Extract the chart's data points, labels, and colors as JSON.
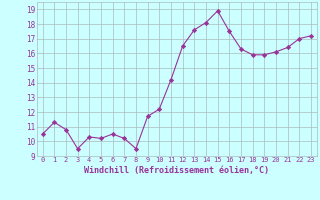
{
  "x": [
    0,
    1,
    2,
    3,
    4,
    5,
    6,
    7,
    8,
    9,
    10,
    11,
    12,
    13,
    14,
    15,
    16,
    17,
    18,
    19,
    20,
    21,
    22,
    23
  ],
  "y": [
    10.5,
    11.3,
    10.8,
    9.5,
    10.3,
    10.2,
    10.5,
    10.2,
    9.5,
    11.7,
    12.2,
    14.2,
    16.5,
    17.6,
    18.1,
    18.9,
    17.5,
    16.3,
    15.9,
    15.9,
    16.1,
    16.4,
    17.0,
    17.2
  ],
  "line_color": "#993399",
  "marker": "D",
  "markersize": 2.2,
  "linewidth": 0.8,
  "bg_color": "#ccffff",
  "grid_color": "#aabbbb",
  "xlabel": "Windchill (Refroidissement éolien,°C)",
  "ylabel_ticks": [
    9,
    10,
    11,
    12,
    13,
    14,
    15,
    16,
    17,
    18,
    19
  ],
  "ylim": [
    9,
    19.5
  ],
  "xlim": [
    -0.5,
    23.5
  ],
  "tick_color": "#993399",
  "xlabel_color": "#993399",
  "font_family": "monospace",
  "xtick_fontsize": 5.0,
  "ytick_fontsize": 5.5,
  "xlabel_fontsize": 6.0
}
